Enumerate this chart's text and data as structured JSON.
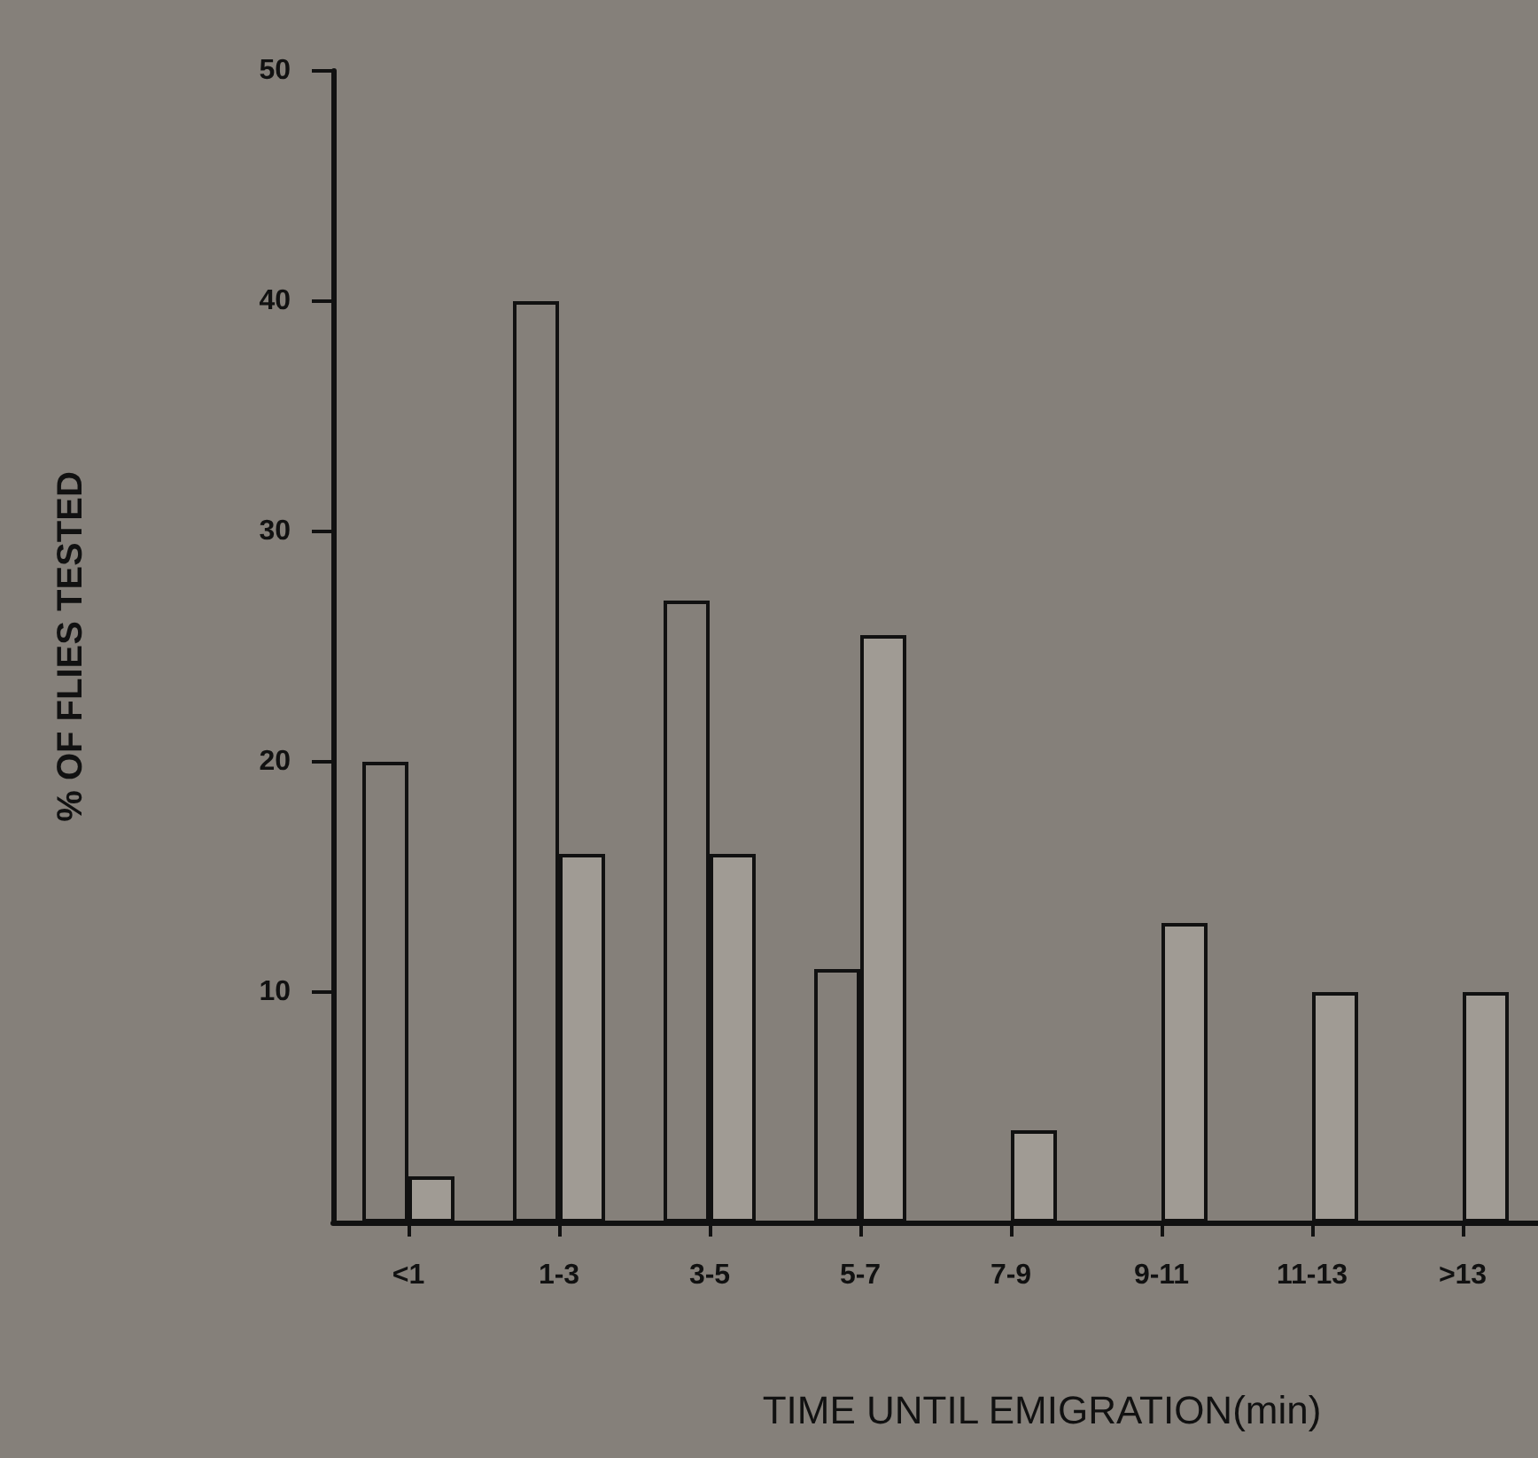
{
  "chart_data": {
    "type": "bar",
    "xlabel": "TIME UNTIL EMIGRATION(min)",
    "ylabel": "% OF FLIES TESTED",
    "categories": [
      "<1",
      "1-3",
      "3-5",
      "5-7",
      "7-9",
      "9-11",
      "11-13",
      ">13"
    ],
    "series": [
      {
        "color": "#85807a",
        "values": [
          20,
          40,
          27,
          11,
          null,
          null,
          null,
          null
        ]
      },
      {
        "color": "#a09b94",
        "values": [
          2,
          16,
          16,
          25.5,
          4,
          13,
          10,
          10
        ]
      }
    ],
    "ylim": [
      0,
      50
    ],
    "yticks": [
      10,
      20,
      30,
      40,
      50
    ],
    "grid": false
  }
}
